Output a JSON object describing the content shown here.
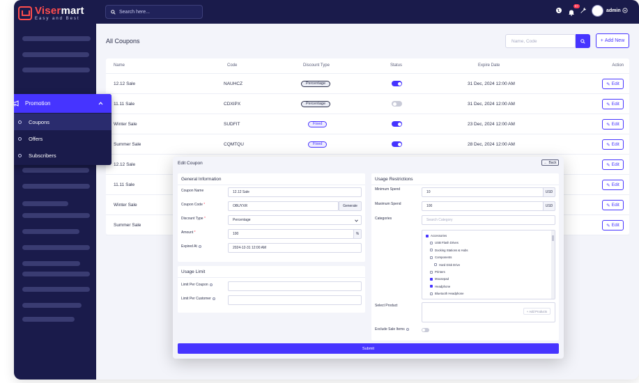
{
  "brand": {
    "name_a": "Viser",
    "name_b": "mart",
    "tagline": "Easy and Best"
  },
  "topbar": {
    "search_placeholder": "Search here...",
    "notification_count": "9+",
    "admin_name": "admin"
  },
  "sidebar": {
    "promotion": {
      "label": "Promotion",
      "items": [
        {
          "label": "Coupons"
        },
        {
          "label": "Offers"
        },
        {
          "label": "Subscribers"
        }
      ]
    }
  },
  "page": {
    "title": "All Coupons",
    "search_placeholder": "Name, Code",
    "add_new_label": "Add New"
  },
  "table": {
    "headers": {
      "name": "Name",
      "code": "Code",
      "discount_type": "Discount Type",
      "status": "Status",
      "expire_date": "Expire Date",
      "action": "Action"
    },
    "edit_label": "Edit",
    "rows": [
      {
        "name": "12.12 Sale",
        "code": "NAUHCZ",
        "discount_type": "Percentage",
        "status": "on",
        "expire": "31 Dec, 2024 12:00 AM"
      },
      {
        "name": "11.11 Sale",
        "code": "CDXIPX",
        "discount_type": "Percentage",
        "status": "off",
        "expire": "31 Dec, 2024 12:00 AM"
      },
      {
        "name": "Winter Sale",
        "code": "SUDFIT",
        "discount_type": "Fixed",
        "status": "on",
        "expire": "23 Dec, 2024 12:00 AM"
      },
      {
        "name": "Summer Sale",
        "code": "CQMTQU",
        "discount_type": "Fixed",
        "status": "on",
        "expire": "28 Dec, 2024 12:00 AM"
      },
      {
        "name": "12.12 Sale"
      },
      {
        "name": "11.11 Sale"
      },
      {
        "name": "Winter Sale"
      },
      {
        "name": "Summer Sale"
      }
    ]
  },
  "modal": {
    "title": "Edit Coupon",
    "back_label": "Back",
    "general": {
      "title": "General Information",
      "coupon_name_label": "Coupon Name",
      "coupon_name_value": "12.12 Sale",
      "coupon_code_label": "Coupon Code",
      "coupon_code_value": "OBUYXR",
      "generate_label": "Generate",
      "discount_type_label": "Discount Type",
      "discount_type_value": "Percentage",
      "amount_label": "Amount",
      "amount_value": "100",
      "amount_unit": "%",
      "expired_at_label": "Expired At",
      "expired_at_value": "2024-12-31 12:00 AM"
    },
    "usage_limit": {
      "title": "Usage Limit",
      "per_coupon_label": "Limit Per Coupon",
      "per_customer_label": "Limit Per Customer"
    },
    "restrictions": {
      "title": "Usage Restrictions",
      "min_spend_label": "Minimum Spend",
      "min_spend_value": "10",
      "max_spend_label": "Maximum Spend",
      "max_spend_value": "100",
      "currency": "USD",
      "categories_label": "Categories",
      "category_search_placeholder": "Search Category",
      "categories": [
        {
          "label": "Accessories",
          "level": 0,
          "checked": true
        },
        {
          "label": "USB Flash Drives",
          "level": 1,
          "checked": false
        },
        {
          "label": "Docking Stations & Hubs",
          "level": 1,
          "checked": false
        },
        {
          "label": "Components",
          "level": 1,
          "checked": false
        },
        {
          "label": "Hard Disk Drive",
          "level": 2,
          "checked": false
        },
        {
          "label": "Printers",
          "level": 1,
          "checked": false
        },
        {
          "label": "Mousepad",
          "level": 1,
          "checked": true
        },
        {
          "label": "Headphone",
          "level": 1,
          "checked": true
        },
        {
          "label": "Bluetooth Headphone",
          "level": 1,
          "checked": false
        }
      ],
      "select_product_label": "Select Product",
      "add_products_label": "+ Add Products",
      "exclude_sale_label": "Exclude Sale Items"
    },
    "submit_label": "Submit"
  },
  "colors": {
    "primary": "#4634ff",
    "sidebar": "#1a1b4b",
    "danger": "#ff3d57"
  }
}
